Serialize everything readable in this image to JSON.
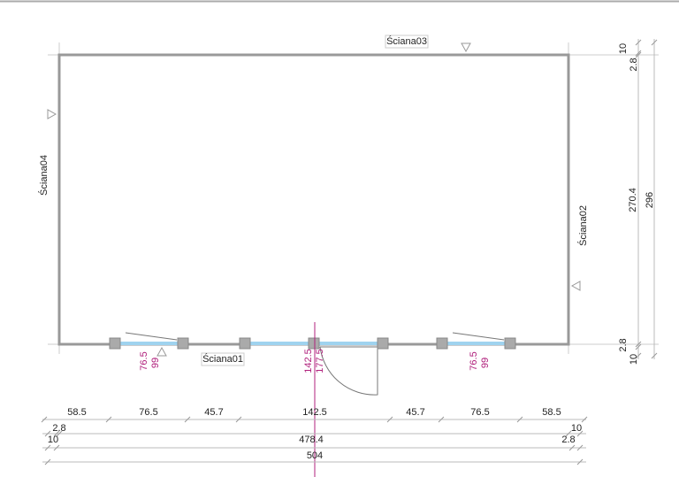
{
  "walls": {
    "top": "Ściana03",
    "left": "Ściana04",
    "right": "Ściana02",
    "bottom": "Ściana01"
  },
  "openings": [
    {
      "width": "76.5",
      "height": "99"
    },
    {
      "width": "142.5",
      "height": "177.5"
    },
    {
      "width": "76.5",
      "height": "99"
    }
  ],
  "bottom_dimensions": {
    "row1": [
      "58.5",
      "76.5",
      "45.7",
      "142.5",
      "45.7",
      "76.5",
      "58.5"
    ],
    "row2": {
      "left": "2.8",
      "right": "10"
    },
    "row3": {
      "left": "10",
      "middle": "478.4",
      "right": "2.8"
    },
    "row4": "504"
  },
  "right_dimensions": {
    "top_outer": "10",
    "top_inner": "2.8",
    "inner": "270.4",
    "total": "296",
    "bottom_inner": "2.8",
    "bottom_outer": "10"
  }
}
